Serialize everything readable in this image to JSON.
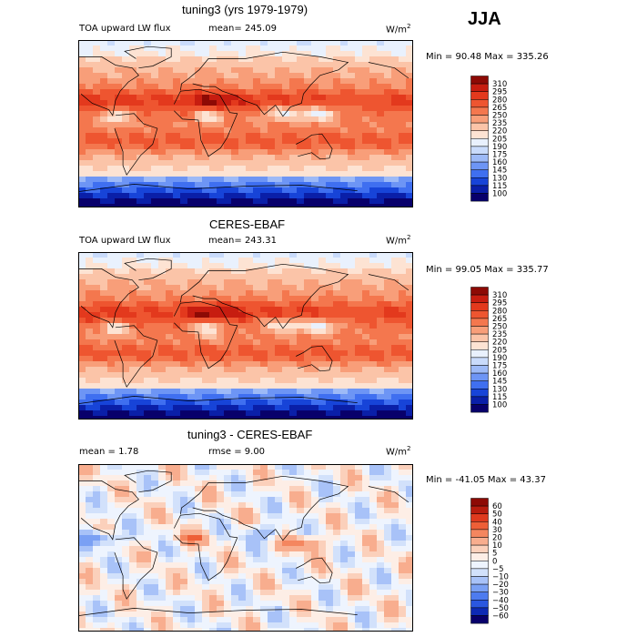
{
  "season": "JJA",
  "colors": {
    "abs_scale": [
      "#08006b",
      "#0a1fa8",
      "#1744d8",
      "#3f6ff0",
      "#6d95f5",
      "#9dbaf7",
      "#c9dbfb",
      "#e9f1fd",
      "#fde3d3",
      "#fbc4a8",
      "#f89e79",
      "#f4774e",
      "#ee5530",
      "#e3391d",
      "#c71d10",
      "#8d0a05"
    ],
    "diff_scale": [
      "#08006b",
      "#0d2ab5",
      "#2a57e0",
      "#4d7bef",
      "#7aa0f4",
      "#a8c2f8",
      "#d2e1fb",
      "#eef4fe",
      "#fdeee6",
      "#fbd0bb",
      "#f8ad8e",
      "#f4865f",
      "#ee5f37",
      "#e03a1e",
      "#b81c0e",
      "#8d0a05"
    ]
  },
  "panels": [
    {
      "title": "tuning3 (yrs 1979-1979)",
      "variable_label": "TOA upward LW flux",
      "mean_label": "mean=",
      "mean_value": "245.09",
      "units": "W/m",
      "units_exp": "2",
      "min_max": "Min =  90.48 Max = 335.26",
      "colorbar_levels": [
        "310",
        "295",
        "280",
        "265",
        "250",
        "235",
        "220",
        "205",
        "190",
        "175",
        "160",
        "145",
        "130",
        "115",
        "100"
      ]
    },
    {
      "title": "CERES-EBAF",
      "variable_label": "TOA upward LW flux",
      "mean_label": "mean=",
      "mean_value": "243.31",
      "units": "W/m",
      "units_exp": "2",
      "min_max": "Min =  99.05 Max = 335.77",
      "colorbar_levels": [
        "310",
        "295",
        "280",
        "265",
        "250",
        "235",
        "220",
        "205",
        "190",
        "175",
        "160",
        "145",
        "130",
        "115",
        "100"
      ]
    },
    {
      "title": "tuning3 - CERES-EBAF",
      "mean_text": "mean =    1.78",
      "rmse_text": "rmse =    9.00",
      "units": "W/m",
      "units_exp": "2",
      "min_max": "Min = -41.05 Max =  43.37",
      "colorbar_levels": [
        "60",
        "50",
        "40",
        "30",
        "20",
        "10",
        "5",
        "0",
        "−5",
        "−10",
        "−20",
        "−30",
        "−40",
        "−50",
        "−60"
      ]
    }
  ],
  "chart_data": [
    {
      "type": "heatmap",
      "title": "tuning3 (yrs 1979-1979)",
      "season": "JJA",
      "variable": "TOA upward LW flux",
      "units": "W/m2",
      "mean": 245.09,
      "min": 90.48,
      "max": 335.26,
      "colorbar_levels": [
        100,
        115,
        130,
        145,
        160,
        175,
        190,
        205,
        220,
        235,
        250,
        265,
        280,
        295,
        310
      ],
      "note": "map of global longitude-latitude field with coastlines"
    },
    {
      "type": "heatmap",
      "title": "CERES-EBAF",
      "variable": "TOA upward LW flux",
      "units": "W/m2",
      "mean": 243.31,
      "min": 99.05,
      "max": 335.77,
      "colorbar_levels": [
        100,
        115,
        130,
        145,
        160,
        175,
        190,
        205,
        220,
        235,
        250,
        265,
        280,
        295,
        310
      ]
    },
    {
      "type": "heatmap",
      "title": "tuning3 - CERES-EBAF",
      "units": "W/m2",
      "mean": 1.78,
      "rmse": 9.0,
      "min": -41.05,
      "max": 43.37,
      "colorbar_levels": [
        -60,
        -50,
        -40,
        -30,
        -20,
        -10,
        -5,
        0,
        5,
        10,
        20,
        30,
        40,
        50,
        60
      ]
    }
  ]
}
